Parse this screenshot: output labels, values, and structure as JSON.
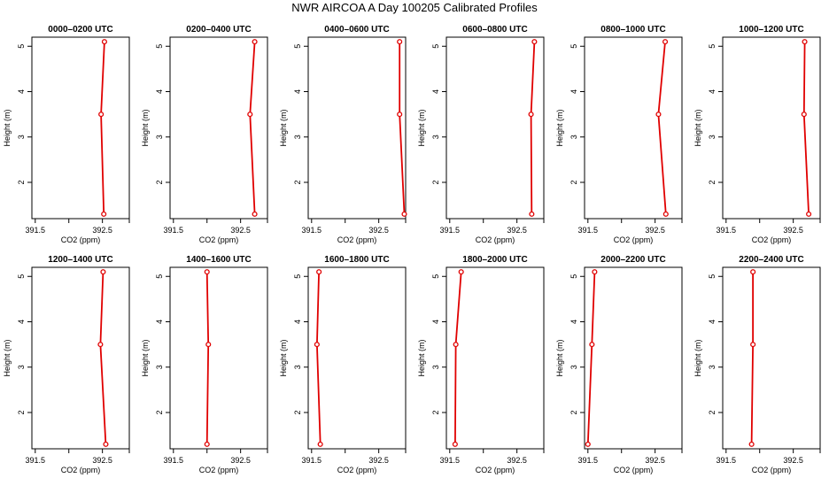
{
  "title": "NWR AIRCOA A  Day 100205  Calibrated Profiles",
  "colors": {
    "line": "#e00000",
    "marker": "#e00000",
    "axis": "#000000"
  },
  "chart_data": [
    {
      "type": "line",
      "title": "0000–0200 UTC",
      "xlabel": "CO2 (ppm)",
      "ylabel": "Height (m)",
      "xlim": [
        391.45,
        392.9
      ],
      "ylim": [
        1.2,
        5.2
      ],
      "x_ticks": [
        "391.5",
        "392.5"
      ],
      "y_ticks": [
        "2",
        "3",
        "4",
        "5"
      ],
      "grid": false,
      "marker": "circle",
      "points": [
        {
          "x": 392.52,
          "y": 1.3
        },
        {
          "x": 392.48,
          "y": 3.5
        },
        {
          "x": 392.53,
          "y": 5.1
        }
      ]
    },
    {
      "type": "line",
      "title": "0200–0400 UTC",
      "xlabel": "CO2 (ppm)",
      "ylabel": "Height (m)",
      "xlim": [
        391.45,
        392.9
      ],
      "ylim": [
        1.2,
        5.2
      ],
      "x_ticks": [
        "391.5",
        "392.5"
      ],
      "y_ticks": [
        "2",
        "3",
        "4",
        "5"
      ],
      "grid": false,
      "marker": "circle",
      "points": [
        {
          "x": 392.71,
          "y": 1.3
        },
        {
          "x": 392.64,
          "y": 3.5
        },
        {
          "x": 392.71,
          "y": 5.1
        }
      ]
    },
    {
      "type": "line",
      "title": "0400–0600 UTC",
      "xlabel": "CO2 (ppm)",
      "ylabel": "Height (m)",
      "xlim": [
        391.45,
        392.9
      ],
      "ylim": [
        1.2,
        5.2
      ],
      "x_ticks": [
        "391.5",
        "392.5"
      ],
      "y_ticks": [
        "2",
        "3",
        "4",
        "5"
      ],
      "grid": false,
      "marker": "circle",
      "points": [
        {
          "x": 392.88,
          "y": 1.3
        },
        {
          "x": 392.81,
          "y": 3.5
        },
        {
          "x": 392.81,
          "y": 5.1
        }
      ]
    },
    {
      "type": "line",
      "title": "0600–0800 UTC",
      "xlabel": "CO2 (ppm)",
      "ylabel": "Height (m)",
      "xlim": [
        391.45,
        392.9
      ],
      "ylim": [
        1.2,
        5.2
      ],
      "x_ticks": [
        "391.5",
        "392.5"
      ],
      "y_ticks": [
        "2",
        "3",
        "4",
        "5"
      ],
      "grid": false,
      "marker": "circle",
      "points": [
        {
          "x": 392.72,
          "y": 1.3
        },
        {
          "x": 392.71,
          "y": 3.5
        },
        {
          "x": 392.76,
          "y": 5.1
        }
      ]
    },
    {
      "type": "line",
      "title": "0800–1000 UTC",
      "xlabel": "CO2 (ppm)",
      "ylabel": "Height (m)",
      "xlim": [
        391.45,
        392.9
      ],
      "ylim": [
        1.2,
        5.2
      ],
      "x_ticks": [
        "391.5",
        "392.5"
      ],
      "y_ticks": [
        "2",
        "3",
        "4",
        "5"
      ],
      "grid": false,
      "marker": "circle",
      "points": [
        {
          "x": 392.66,
          "y": 1.3
        },
        {
          "x": 392.55,
          "y": 3.5
        },
        {
          "x": 392.65,
          "y": 5.1
        }
      ]
    },
    {
      "type": "line",
      "title": "1000–1200 UTC",
      "xlabel": "CO2 (ppm)",
      "ylabel": "Height (m)",
      "xlim": [
        391.45,
        392.9
      ],
      "ylim": [
        1.2,
        5.2
      ],
      "x_ticks": [
        "391.5",
        "392.5"
      ],
      "y_ticks": [
        "2",
        "3",
        "4",
        "5"
      ],
      "grid": false,
      "marker": "circle",
      "points": [
        {
          "x": 392.73,
          "y": 1.3
        },
        {
          "x": 392.66,
          "y": 3.5
        },
        {
          "x": 392.67,
          "y": 5.1
        }
      ]
    },
    {
      "type": "line",
      "title": "1200–1400 UTC",
      "xlabel": "CO2 (ppm)",
      "ylabel": "Height (m)",
      "xlim": [
        391.45,
        392.9
      ],
      "ylim": [
        1.2,
        5.2
      ],
      "x_ticks": [
        "391.5",
        "392.5"
      ],
      "y_ticks": [
        "2",
        "3",
        "4",
        "5"
      ],
      "grid": false,
      "marker": "circle",
      "points": [
        {
          "x": 392.55,
          "y": 1.3
        },
        {
          "x": 392.47,
          "y": 3.5
        },
        {
          "x": 392.51,
          "y": 5.1
        }
      ]
    },
    {
      "type": "line",
      "title": "1400–1600 UTC",
      "xlabel": "CO2 (ppm)",
      "ylabel": "Height (m)",
      "xlim": [
        391.45,
        392.9
      ],
      "ylim": [
        1.2,
        5.2
      ],
      "x_ticks": [
        "391.5",
        "392.5"
      ],
      "y_ticks": [
        "2",
        "3",
        "4",
        "5"
      ],
      "grid": false,
      "marker": "circle",
      "points": [
        {
          "x": 392.0,
          "y": 1.3
        },
        {
          "x": 392.02,
          "y": 3.5
        },
        {
          "x": 392.0,
          "y": 5.1
        }
      ]
    },
    {
      "type": "line",
      "title": "1600–1800 UTC",
      "xlabel": "CO2 (ppm)",
      "ylabel": "Height (m)",
      "xlim": [
        391.45,
        392.9
      ],
      "ylim": [
        1.2,
        5.2
      ],
      "x_ticks": [
        "391.5",
        "392.5"
      ],
      "y_ticks": [
        "2",
        "3",
        "4",
        "5"
      ],
      "grid": false,
      "marker": "circle",
      "points": [
        {
          "x": 391.63,
          "y": 1.3
        },
        {
          "x": 391.58,
          "y": 3.5
        },
        {
          "x": 391.61,
          "y": 5.1
        }
      ]
    },
    {
      "type": "line",
      "title": "1800–2000 UTC",
      "xlabel": "CO2 (ppm)",
      "ylabel": "Height (m)",
      "xlim": [
        391.45,
        392.9
      ],
      "ylim": [
        1.2,
        5.2
      ],
      "x_ticks": [
        "391.5",
        "392.5"
      ],
      "y_ticks": [
        "2",
        "3",
        "4",
        "5"
      ],
      "grid": false,
      "marker": "circle",
      "points": [
        {
          "x": 391.58,
          "y": 1.3
        },
        {
          "x": 391.59,
          "y": 3.5
        },
        {
          "x": 391.67,
          "y": 5.1
        }
      ]
    },
    {
      "type": "line",
      "title": "2000–2200 UTC",
      "xlabel": "CO2 (ppm)",
      "ylabel": "Height (m)",
      "xlim": [
        391.45,
        392.9
      ],
      "ylim": [
        1.2,
        5.2
      ],
      "x_ticks": [
        "391.5",
        "392.5"
      ],
      "y_ticks": [
        "2",
        "3",
        "4",
        "5"
      ],
      "grid": false,
      "marker": "circle",
      "points": [
        {
          "x": 391.5,
          "y": 1.3
        },
        {
          "x": 391.56,
          "y": 3.5
        },
        {
          "x": 391.6,
          "y": 5.1
        }
      ]
    },
    {
      "type": "line",
      "title": "2200–2400 UTC",
      "xlabel": "CO2 (ppm)",
      "ylabel": "Height (m)",
      "xlim": [
        391.45,
        392.9
      ],
      "ylim": [
        1.2,
        5.2
      ],
      "x_ticks": [
        "391.5",
        "392.5"
      ],
      "y_ticks": [
        "2",
        "3",
        "4",
        "5"
      ],
      "grid": false,
      "marker": "circle",
      "points": [
        {
          "x": 391.88,
          "y": 1.3
        },
        {
          "x": 391.9,
          "y": 3.5
        },
        {
          "x": 391.9,
          "y": 5.1
        }
      ]
    }
  ]
}
